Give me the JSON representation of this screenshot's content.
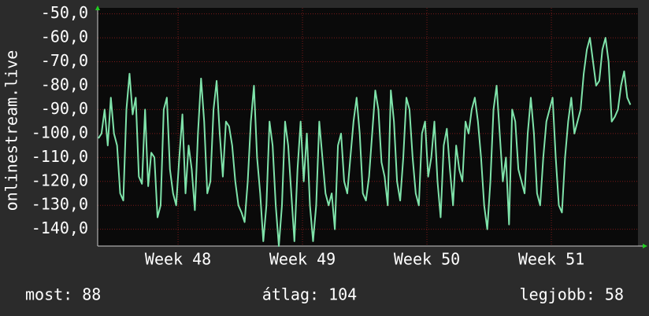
{
  "chart_data": {
    "type": "line",
    "y_label": "onlinestream.live",
    "xlim": [
      47.354,
      51.696
    ],
    "xticks": [
      {
        "value": 48,
        "label": "Week 48"
      },
      {
        "value": 49,
        "label": "Week 49"
      },
      {
        "value": 50,
        "label": "Week 50"
      },
      {
        "value": 51,
        "label": "Week 51"
      }
    ],
    "ylim": [
      -147,
      -47.5
    ],
    "yticks": [
      {
        "value": -50,
        "label": "-50,0"
      },
      {
        "value": -60,
        "label": "-60,0"
      },
      {
        "value": -70,
        "label": "-70,0"
      },
      {
        "value": -80,
        "label": "-80,0"
      },
      {
        "value": -90,
        "label": "-90,0"
      },
      {
        "value": -100,
        "label": "-100,0"
      },
      {
        "value": -110,
        "label": "-110,0"
      },
      {
        "value": -120,
        "label": "-120,0"
      },
      {
        "value": -130,
        "label": "-130,0"
      },
      {
        "value": -140,
        "label": "-140,0"
      }
    ],
    "grid": true,
    "x": [
      47.36,
      47.385,
      47.41,
      47.435,
      47.46,
      47.485,
      47.51,
      47.535,
      47.56,
      47.585,
      47.61,
      47.635,
      47.66,
      47.685,
      47.71,
      47.735,
      47.76,
      47.785,
      47.81,
      47.835,
      47.86,
      47.885,
      47.91,
      47.935,
      47.96,
      47.985,
      48.01,
      48.035,
      48.06,
      48.085,
      48.11,
      48.135,
      48.16,
      48.185,
      48.21,
      48.235,
      48.26,
      48.285,
      48.31,
      48.335,
      48.36,
      48.385,
      48.41,
      48.435,
      48.46,
      48.485,
      48.51,
      48.535,
      48.56,
      48.585,
      48.61,
      48.635,
      48.66,
      48.685,
      48.71,
      48.735,
      48.76,
      48.785,
      48.81,
      48.835,
      48.86,
      48.885,
      48.91,
      48.935,
      48.96,
      48.985,
      49.01,
      49.035,
      49.06,
      49.085,
      49.11,
      49.135,
      49.16,
      49.185,
      49.21,
      49.235,
      49.26,
      49.285,
      49.31,
      49.335,
      49.36,
      49.385,
      49.41,
      49.435,
      49.46,
      49.485,
      49.51,
      49.535,
      49.56,
      49.585,
      49.61,
      49.635,
      49.66,
      49.685,
      49.71,
      49.735,
      49.76,
      49.785,
      49.81,
      49.835,
      49.86,
      49.885,
      49.91,
      49.935,
      49.96,
      49.985,
      50.01,
      50.035,
      50.06,
      50.085,
      50.11,
      50.135,
      50.16,
      50.185,
      50.21,
      50.235,
      50.26,
      50.285,
      50.31,
      50.335,
      50.36,
      50.385,
      50.41,
      50.435,
      50.46,
      50.485,
      50.51,
      50.535,
      50.56,
      50.585,
      50.61,
      50.635,
      50.66,
      50.685,
      50.71,
      50.735,
      50.76,
      50.785,
      50.81,
      50.835,
      50.86,
      50.885,
      50.91,
      50.935,
      50.96,
      50.985,
      51.01,
      51.035,
      51.06,
      51.085,
      51.11,
      51.135,
      51.16,
      51.185,
      51.21,
      51.235,
      51.26,
      51.285,
      51.31,
      51.335,
      51.36,
      51.385,
      51.41,
      51.435,
      51.46,
      51.485,
      51.51,
      51.535,
      51.56,
      51.585,
      51.61,
      51.635
    ],
    "series": [
      {
        "color": "#7fe3aa",
        "values": [
          -102,
          -100,
          -90,
          -105,
          -85,
          -100,
          -105,
          -125,
          -128,
          -90,
          -75,
          -92,
          -85,
          -118,
          -121,
          -90,
          -122,
          -108,
          -110,
          -135,
          -130,
          -90,
          -85,
          -115,
          -125,
          -130,
          -110,
          -92,
          -125,
          -105,
          -115,
          -132,
          -100,
          -77,
          -95,
          -125,
          -120,
          -90,
          -78,
          -100,
          -118,
          -95,
          -97,
          -105,
          -120,
          -130,
          -133,
          -137,
          -120,
          -95,
          -80,
          -110,
          -125,
          -145,
          -130,
          -95,
          -105,
          -130,
          -147,
          -130,
          -95,
          -105,
          -125,
          -145,
          -115,
          -95,
          -120,
          -100,
          -130,
          -145,
          -130,
          -95,
          -110,
          -125,
          -130,
          -125,
          -140,
          -105,
          -100,
          -120,
          -125,
          -110,
          -95,
          -85,
          -100,
          -125,
          -128,
          -118,
          -100,
          -82,
          -90,
          -112,
          -118,
          -130,
          -82,
          -95,
          -120,
          -128,
          -110,
          -85,
          -90,
          -110,
          -125,
          -130,
          -100,
          -95,
          -118,
          -110,
          -95,
          -120,
          -135,
          -105,
          -98,
          -115,
          -130,
          -105,
          -115,
          -120,
          -95,
          -100,
          -90,
          -85,
          -95,
          -110,
          -130,
          -140,
          -120,
          -90,
          -80,
          -100,
          -120,
          -110,
          -138,
          -90,
          -95,
          -115,
          -120,
          -125,
          -100,
          -85,
          -100,
          -125,
          -130,
          -110,
          -95,
          -90,
          -85,
          -110,
          -130,
          -133,
          -110,
          -95,
          -85,
          -100,
          -95,
          -90,
          -75,
          -65,
          -60,
          -70,
          -80,
          -78,
          -65,
          -60,
          -70,
          -95,
          -93,
          -90,
          -80,
          -74,
          -85,
          -88
        ]
      }
    ],
    "footer": [
      "most: 88",
      "átlag: 104",
      "legjobb: 58"
    ]
  }
}
